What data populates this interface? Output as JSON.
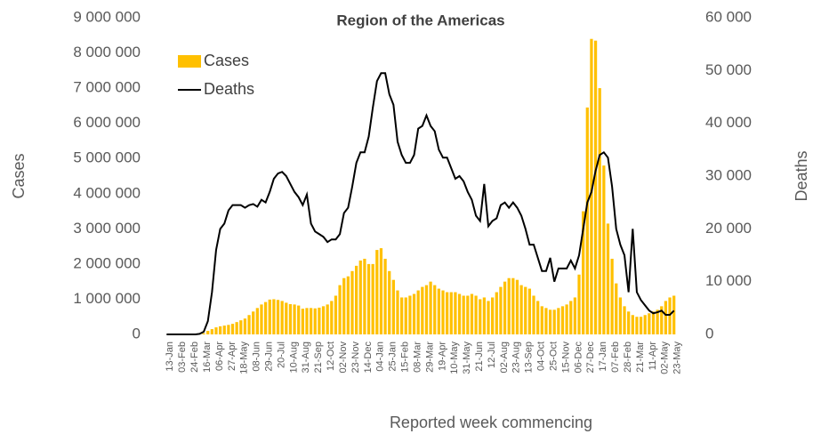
{
  "chart_data": {
    "type": "bar",
    "title": "Region of the Americas",
    "x_label": "Reported week commencing",
    "y_label": "Cases",
    "y2_label": "Deaths",
    "categories": [
      "13-Jan",
      null,
      null,
      "03-Feb",
      null,
      null,
      "24-Feb",
      null,
      null,
      "16-Mar",
      null,
      null,
      "06-Apr",
      null,
      null,
      "27-Apr",
      null,
      null,
      "18-May",
      null,
      null,
      "08-Jun",
      null,
      null,
      "29-Jun",
      null,
      null,
      "20-Jul",
      null,
      null,
      "10-Aug",
      null,
      null,
      "31-Aug",
      null,
      null,
      "21-Sep",
      null,
      null,
      "12-Oct",
      null,
      null,
      "02-Nov",
      null,
      null,
      "23-Nov",
      null,
      null,
      "14-Dec",
      null,
      null,
      "04-Jan",
      null,
      null,
      "25-Jan",
      null,
      null,
      "15-Feb",
      null,
      null,
      "08-Mar",
      null,
      null,
      "29-Mar",
      null,
      null,
      "19-Apr",
      null,
      null,
      "10-May",
      null,
      null,
      "31-May",
      null,
      null,
      "21-Jun",
      null,
      null,
      "12-Jul",
      null,
      null,
      "02-Aug",
      null,
      null,
      "23-Aug",
      null,
      null,
      "13-Sep",
      null,
      null,
      "04-Oct",
      null,
      null,
      "25-Oct",
      null,
      null,
      "15-Nov",
      null,
      null,
      "06-Dec",
      null,
      null,
      "27-Dec",
      null,
      null,
      "17-Jan",
      null,
      null,
      "07-Feb",
      null,
      null,
      "28-Feb",
      null,
      null,
      "21-Mar",
      null,
      null,
      "11-Apr",
      null,
      null,
      "02-May",
      null,
      null,
      "23-May"
    ],
    "series": [
      {
        "name": "Cases",
        "type": "bar",
        "color": "#FFC000",
        "values": [
          0,
          0,
          0,
          0,
          0,
          0,
          0,
          1000,
          5000,
          30000,
          100000,
          150000,
          200000,
          230000,
          250000,
          270000,
          300000,
          350000,
          400000,
          450000,
          550000,
          650000,
          750000,
          850000,
          920000,
          990000,
          1000000,
          980000,
          950000,
          900000,
          860000,
          850000,
          820000,
          730000,
          750000,
          750000,
          740000,
          760000,
          800000,
          850000,
          950000,
          1100000,
          1400000,
          1600000,
          1650000,
          1800000,
          1950000,
          2100000,
          2150000,
          2000000,
          2000000,
          2400000,
          2450000,
          2150000,
          1800000,
          1550000,
          1250000,
          1050000,
          1050000,
          1100000,
          1150000,
          1250000,
          1350000,
          1400000,
          1500000,
          1400000,
          1300000,
          1250000,
          1200000,
          1200000,
          1200000,
          1150000,
          1100000,
          1100000,
          1150000,
          1100000,
          1000000,
          1050000,
          950000,
          1050000,
          1200000,
          1350000,
          1500000,
          1600000,
          1600000,
          1550000,
          1400000,
          1350000,
          1300000,
          1100000,
          950000,
          800000,
          750000,
          700000,
          700000,
          750000,
          800000,
          850000,
          950000,
          1050000,
          1700000,
          3500000,
          6450000,
          8400000,
          8350000,
          7000000,
          4800000,
          3150000,
          2150000,
          1450000,
          1050000,
          800000,
          650000,
          550000,
          500000,
          500000,
          550000,
          600000,
          650000,
          700000,
          800000,
          950000,
          1050000,
          1100000
        ]
      },
      {
        "name": "Deaths",
        "type": "line",
        "axis": "y2",
        "color": "#000000",
        "values": [
          0,
          0,
          0,
          0,
          0,
          0,
          0,
          0,
          100,
          500,
          2500,
          8000,
          16000,
          20000,
          21000,
          23500,
          24500,
          24500,
          24500,
          24000,
          24500,
          24700,
          24200,
          25500,
          25000,
          27000,
          29500,
          30500,
          30800,
          30000,
          28500,
          27000,
          26000,
          24500,
          26500,
          21000,
          19500,
          19000,
          18500,
          17500,
          18000,
          18000,
          19000,
          23000,
          24000,
          28000,
          32500,
          34500,
          34500,
          37500,
          43000,
          48000,
          49500,
          49500,
          45500,
          43500,
          36500,
          34000,
          32500,
          32500,
          34000,
          39000,
          39500,
          41500,
          39500,
          38500,
          35000,
          33500,
          33500,
          31500,
          29500,
          30000,
          29000,
          27000,
          25500,
          22500,
          21500,
          28500,
          20500,
          21500,
          22000,
          24500,
          25000,
          24000,
          25000,
          24000,
          22500,
          20000,
          17000,
          17000,
          14500,
          12000,
          12000,
          14500,
          10000,
          12500,
          12500,
          12500,
          14000,
          12500,
          15000,
          20000,
          25000,
          27000,
          31000,
          34000,
          34500,
          33500,
          28000,
          20000,
          17000,
          15000,
          8000,
          20000,
          8000,
          6500,
          5500,
          4500,
          4000,
          4200,
          4500,
          3700,
          3700,
          4500
        ]
      }
    ],
    "ylim": [
      0,
      9000000
    ],
    "yticks": [
      0,
      {
        "value": 1000000,
        "label": "1 000 000"
      },
      {
        "value": 2000000,
        "label": "2 000 000"
      },
      {
        "value": 3000000,
        "label": "3 000 000"
      },
      {
        "value": 4000000,
        "label": "4 000 000"
      },
      {
        "value": 5000000,
        "label": "5 000 000"
      },
      {
        "value": 6000000,
        "label": "6 000 000"
      },
      {
        "value": 7000000,
        "label": "7 000 000"
      },
      {
        "value": 8000000,
        "label": "8 000 000"
      },
      {
        "value": 9000000,
        "label": "9 000 000"
      }
    ],
    "y2lim": [
      0,
      60000
    ],
    "y2ticks": [
      0,
      {
        "value": 10000,
        "label": "10 000"
      },
      {
        "value": 20000,
        "label": "20 000"
      },
      {
        "value": 30000,
        "label": "30 000"
      },
      {
        "value": 40000,
        "label": "40 000"
      },
      {
        "value": 50000,
        "label": "50 000"
      },
      {
        "value": 60000,
        "label": "60 000"
      }
    ],
    "grid": false,
    "legend": "upper left"
  }
}
